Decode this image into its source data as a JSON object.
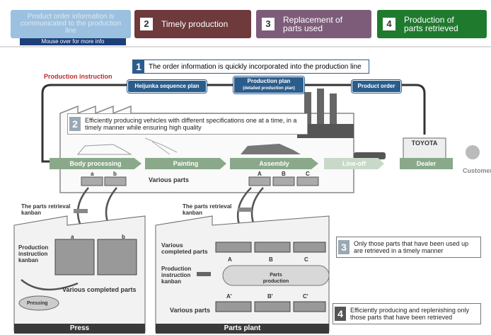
{
  "tabs": [
    {
      "label": "Product order information is communicated to the production line"
    },
    {
      "number": "2",
      "label": "Timely production"
    },
    {
      "number": "3",
      "label": "Replacement of parts used"
    },
    {
      "number": "4",
      "label": "Production of parts retrieved"
    }
  ],
  "tooltip": "Mouse over for more info",
  "step1": {
    "number": "1",
    "text": "The order information is quickly incorporated into the production line"
  },
  "production_instruction": "Production instruction",
  "plan_boxes": [
    {
      "label": "Heijunka sequence plan"
    },
    {
      "label": "Production plan",
      "sublabel": "(detailed production plan)"
    },
    {
      "label": "Product order"
    }
  ],
  "step2": {
    "number": "2",
    "text": "Efficiently producing vehicles with different specifications one at a time, in a timely manner while ensuring high quality"
  },
  "processes": [
    "Body processing",
    "Painting",
    "Assembly",
    "Line-off"
  ],
  "brand": "TOYOTA",
  "dealer": "Dealer",
  "customer": "Customer",
  "various_parts_line": "Various parts",
  "line_part_labels": [
    "a",
    "b",
    "A",
    "B",
    "C"
  ],
  "retrieval_kanban": [
    "The parts retrieval kanban",
    "The parts retrieval kanban"
  ],
  "press": {
    "instruction_kanban": "Production instruction kanban",
    "completed_parts": "Various completed parts",
    "pressing": "Pressing",
    "part_labels": [
      "a",
      "b"
    ],
    "name": "Press"
  },
  "parts_plant": {
    "completed_parts": "Various completed parts",
    "instruction_kanban": "Production instruction kanban",
    "parts_production": "Parts production",
    "various_parts": "Various parts",
    "top_labels": [
      "A",
      "B",
      "C"
    ],
    "bottom_labels": [
      "A'",
      "B'",
      "C'"
    ],
    "name": "Parts plant"
  },
  "step3": {
    "number": "3",
    "text": "Only those parts that have been used up are retrieved in a timely manner"
  },
  "step4": {
    "number": "4",
    "text": "Efficiently producing and replenishing only those parts that have been retrieved"
  }
}
